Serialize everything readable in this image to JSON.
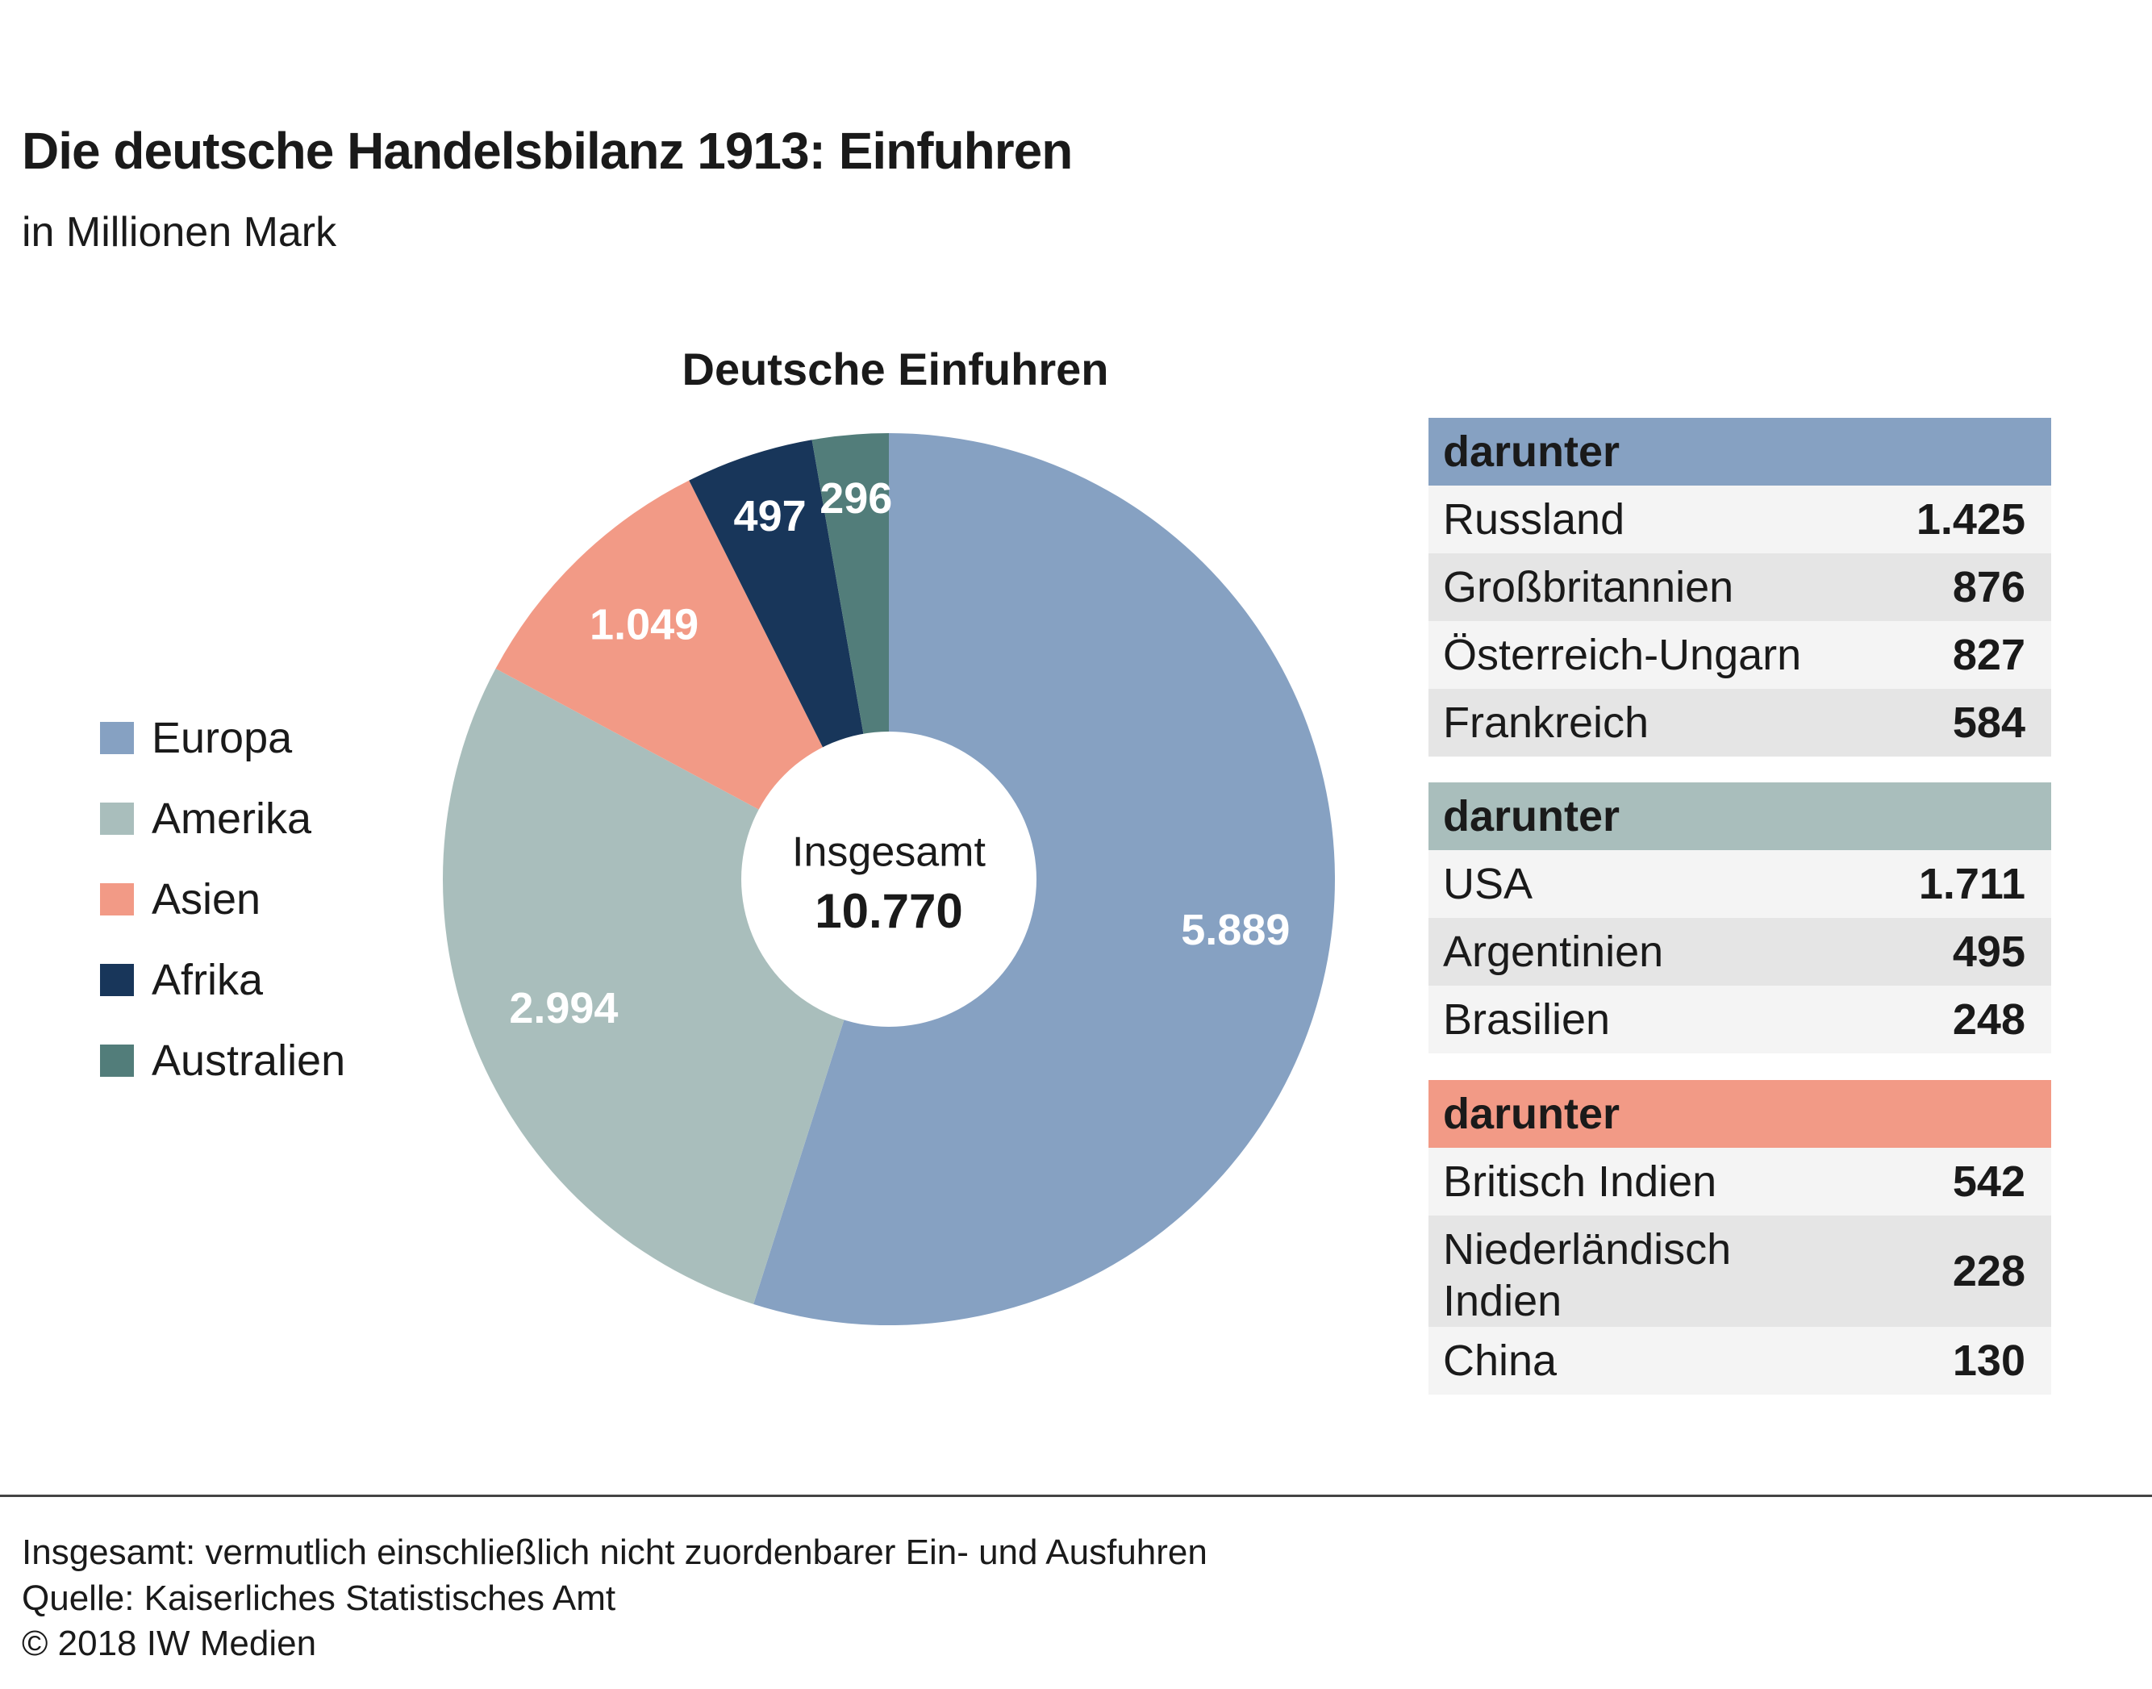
{
  "header": {
    "title": "Die deutsche Handelsbilanz 1913: Einfuhren",
    "subtitle": "in Millionen Mark"
  },
  "chart_data": {
    "type": "pie",
    "title": "Deutsche Einfuhren",
    "unit": "Millionen Mark",
    "categories": [
      "Europa",
      "Amerika",
      "Asien",
      "Afrika",
      "Australien"
    ],
    "values": [
      5889,
      2994,
      1049,
      497,
      296
    ],
    "value_labels": [
      "5.889",
      "2.994",
      "1.049",
      "497",
      "296"
    ],
    "colors": [
      "#86a1c2",
      "#a9bebc",
      "#f29a86",
      "#18365a",
      "#527d7a"
    ],
    "center_label": "Insgesamt",
    "center_value": "10.770",
    "total": 10770,
    "legend_position": "left"
  },
  "legend": {
    "items": [
      {
        "label": "Europa",
        "color": "#86a1c2"
      },
      {
        "label": "Amerika",
        "color": "#a9bebc"
      },
      {
        "label": "Asien",
        "color": "#f29a86"
      },
      {
        "label": "Afrika",
        "color": "#18365a"
      },
      {
        "label": "Australien",
        "color": "#527d7a"
      }
    ]
  },
  "tables": [
    {
      "header": "darunter",
      "color": "#86a1c2",
      "rows": [
        {
          "name": "Russland",
          "value": "1.425"
        },
        {
          "name": "Großbritannien",
          "value": "876"
        },
        {
          "name": "Österreich-Ungarn",
          "value": "827"
        },
        {
          "name": "Frankreich",
          "value": "584"
        }
      ]
    },
    {
      "header": "darunter",
      "color": "#a9bebc",
      "rows": [
        {
          "name": "USA",
          "value": "1.711"
        },
        {
          "name": "Argentinien",
          "value": "495"
        },
        {
          "name": "Brasilien",
          "value": "248"
        }
      ]
    },
    {
      "header": "darunter",
      "color": "#f29a86",
      "rows": [
        {
          "name": "Britisch Indien",
          "value": "542"
        },
        {
          "name": "Niederländisch\nIndien",
          "value": "228"
        },
        {
          "name": "China",
          "value": "130"
        }
      ]
    }
  ],
  "footer": {
    "note": "Insgesamt: vermutlich einschließlich nicht zuordenbarer Ein- und Ausfuhren",
    "source": "Quelle: Kaiserliches Statistisches Amt",
    "copyright": "© 2018 IW Medien"
  }
}
